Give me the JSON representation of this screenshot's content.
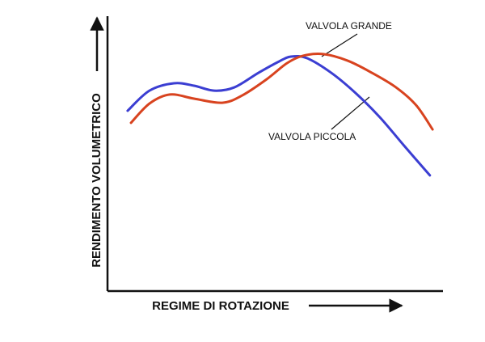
{
  "chart_data": {
    "type": "line",
    "xlabel": "REGIME DI ROTAZIONE",
    "ylabel": "RENDIMENTO VOLUMETRICO",
    "xlim": [
      0,
      100
    ],
    "ylim": [
      0,
      100
    ],
    "series": [
      {
        "name": "VALVOLA PICCOLA",
        "color": "#3b3ed2",
        "x": [
          6.0,
          12.5,
          19.8,
          25.8,
          31.8,
          37.8,
          45.0,
          51.1,
          54.7,
          59.5,
          66.7,
          73.9,
          81.2,
          88.4,
          96.1
        ],
        "values": [
          65.6,
          72.9,
          75.6,
          74.7,
          72.9,
          74.1,
          79.4,
          83.5,
          85.3,
          84.7,
          79.4,
          72.1,
          63.2,
          52.9,
          42.1
        ]
      },
      {
        "name": "VALVOLA GRANDE",
        "color": "#d8431f",
        "x": [
          7.0,
          12.5,
          18.6,
          25.8,
          34.2,
          40.2,
          47.5,
          53.5,
          58.3,
          64.3,
          71.6,
          78.8,
          86.0,
          92.0,
          96.9
        ],
        "values": [
          61.2,
          68.2,
          71.5,
          70.0,
          68.5,
          71.2,
          77.1,
          82.9,
          85.6,
          86.2,
          83.8,
          79.4,
          74.1,
          67.6,
          58.8
        ]
      }
    ]
  }
}
